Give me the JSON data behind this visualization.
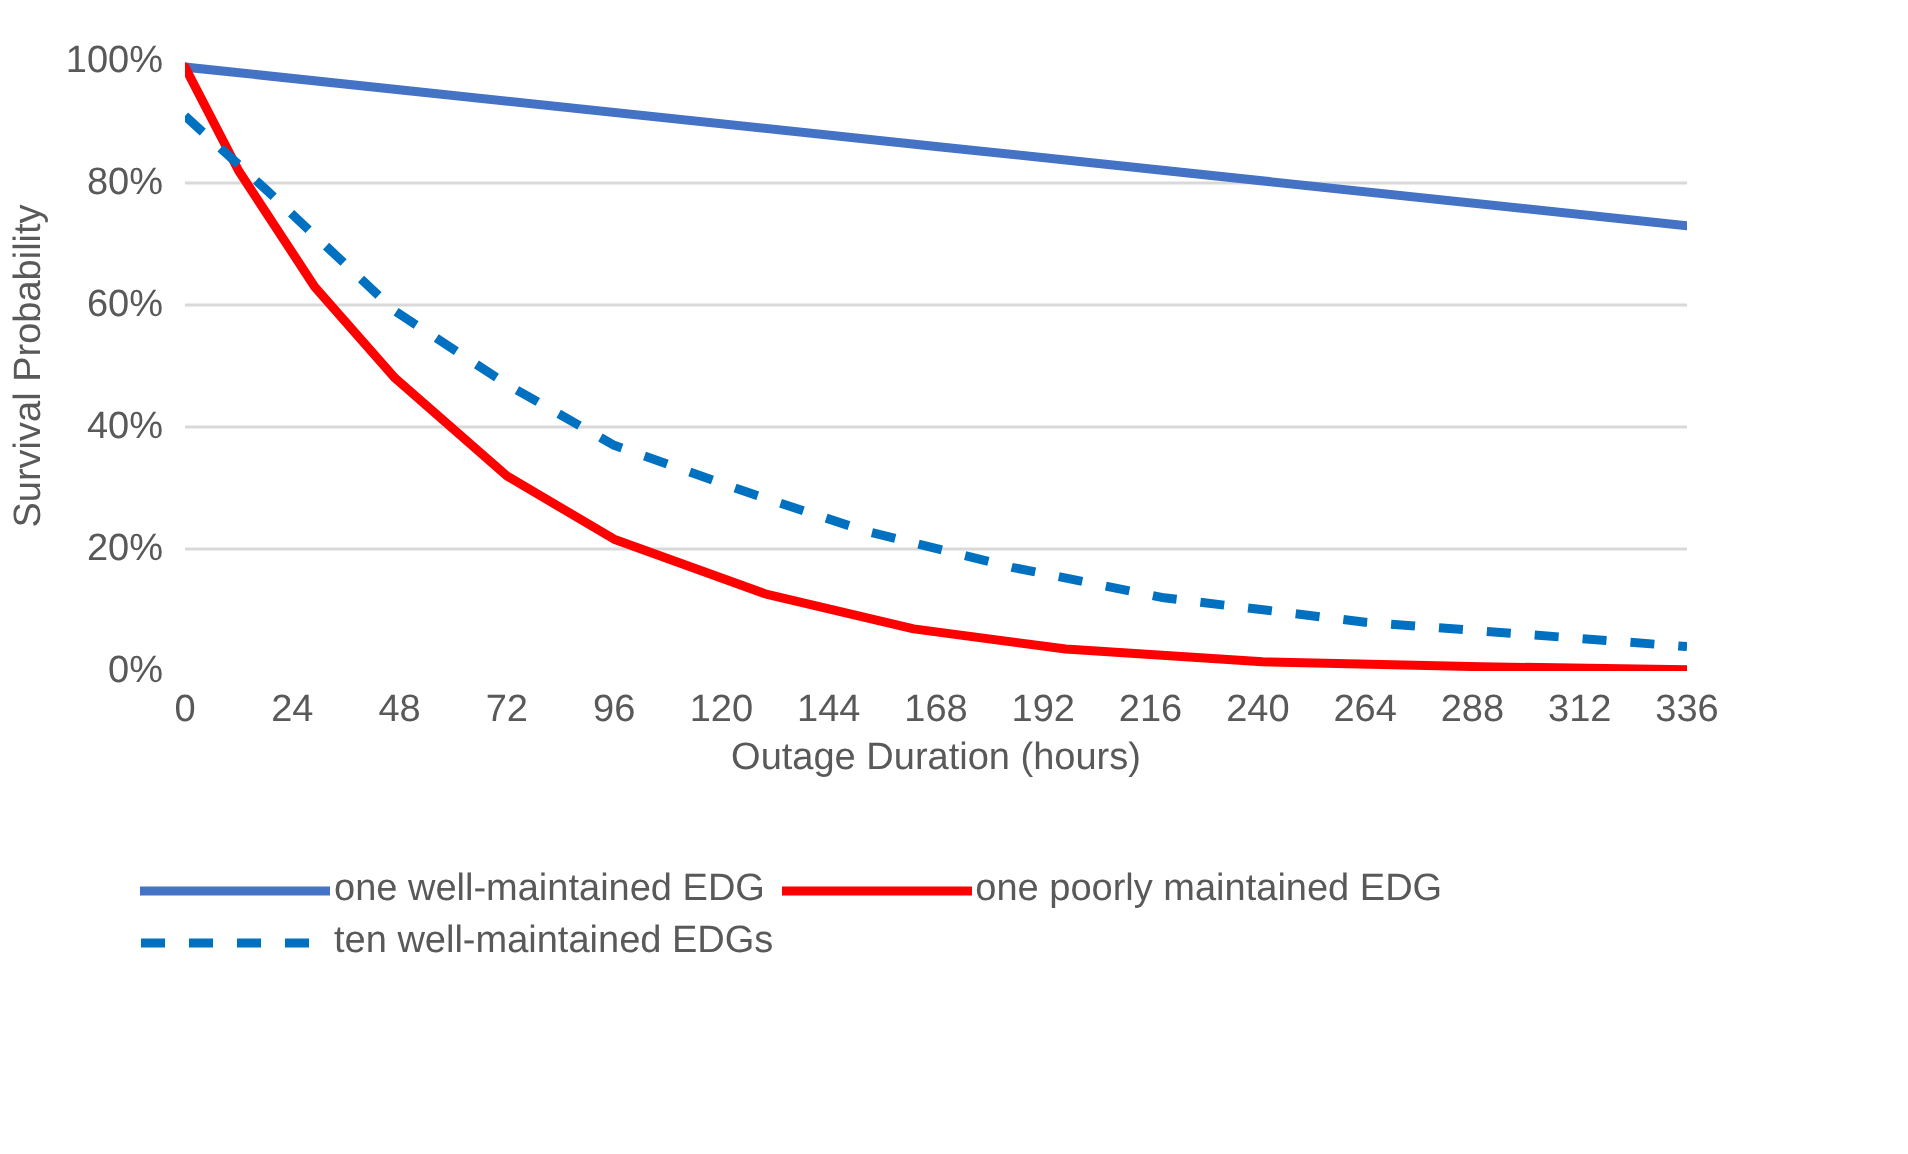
{
  "chart_data": {
    "type": "line",
    "xlabel": "Outage Duration (hours)",
    "ylabel": "Survival Probability",
    "xlim": [
      0,
      336
    ],
    "xticks": [
      0,
      24,
      48,
      72,
      96,
      120,
      144,
      168,
      192,
      216,
      240,
      264,
      288,
      312,
      336
    ],
    "ylim": [
      0,
      100
    ],
    "yticks": [
      {
        "value": 0,
        "label": "0%"
      },
      {
        "value": 20,
        "label": "20%"
      },
      {
        "value": 40,
        "label": "40%"
      },
      {
        "value": 60,
        "label": "60%"
      },
      {
        "value": 80,
        "label": "80%"
      },
      {
        "value": 100,
        "label": "100%"
      }
    ],
    "grid": "y",
    "legend": "bottom",
    "marker": "none",
    "series": [
      {
        "name": "one well-maintained EDG",
        "color": "#4472c4",
        "line_style": "solid",
        "x": [
          0,
          168,
          336
        ],
        "values": [
          99,
          86,
          73
        ]
      },
      {
        "name": "one poorly maintained EDG",
        "color": "#ff0000",
        "line_style": "solid",
        "x": [
          0,
          12,
          29,
          47,
          72,
          96,
          130,
          163,
          197,
          241,
          290,
          336
        ],
        "values": [
          99,
          82,
          63,
          48,
          32,
          21.6,
          12.6,
          6.9,
          3.6,
          1.5,
          0.7,
          0.2
        ]
      },
      {
        "name": "ten well-maintained EDGs",
        "color": "#0070c0",
        "line_style": "dashed",
        "x": [
          0,
          18,
          47,
          72,
          96,
          127,
          152,
          185,
          219,
          264,
          336
        ],
        "values": [
          91,
          79,
          59,
          47,
          37,
          29,
          23,
          17,
          12,
          8,
          4
        ]
      }
    ]
  }
}
